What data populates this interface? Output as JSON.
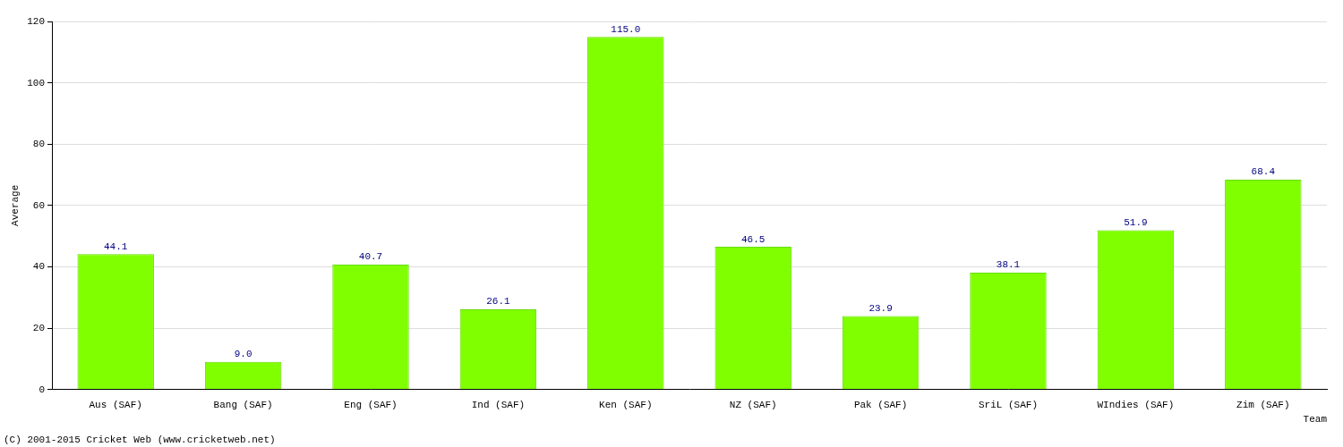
{
  "chart_data": {
    "type": "bar",
    "categories": [
      "Aus (SAF)",
      "Bang (SAF)",
      "Eng (SAF)",
      "Ind (SAF)",
      "Ken (SAF)",
      "NZ (SAF)",
      "Pak (SAF)",
      "SriL (SAF)",
      "WIndies (SAF)",
      "Zim (SAF)"
    ],
    "values": [
      44.1,
      9.0,
      40.7,
      26.1,
      115.0,
      46.5,
      23.9,
      38.1,
      51.9,
      68.4
    ],
    "value_labels": [
      "44.1",
      "9.0",
      "40.7",
      "26.1",
      "115.0",
      "46.5",
      "23.9",
      "38.1",
      "51.9",
      "68.4"
    ],
    "data_labels": true,
    "color": "#80ff00",
    "x_label": "Team",
    "y_label": "Average",
    "source": "(C) 2001-2015 Cricket Web (www.cricketweb.net)",
    "ylim": [
      0,
      120
    ],
    "yticks": [
      0,
      20,
      40,
      60,
      80,
      100,
      120
    ],
    "grid": true
  }
}
